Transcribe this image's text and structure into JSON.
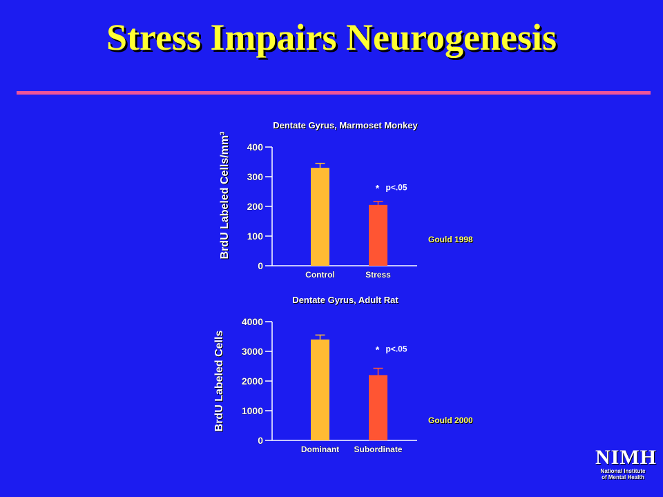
{
  "slide": {
    "title": "Stress Impairs Neurogenesis",
    "rule_color": "#ee5599",
    "background_color": "#1c1cf0"
  },
  "logo": {
    "mark": "NIMH",
    "line1": "National Institute",
    "line2": "of Mental Health"
  },
  "chart_data": [
    {
      "type": "bar",
      "title": "Dentate Gyrus, Marmoset Monkey",
      "ylabel": "BrdU Labeled Cells/mm³",
      "xlabel": "",
      "categories": [
        "Control",
        "Stress"
      ],
      "values": [
        330,
        205
      ],
      "error": [
        15,
        12
      ],
      "colors": [
        "#ffbb33",
        "#ff5533"
      ],
      "ylim": [
        0,
        400
      ],
      "yticks": [
        0,
        100,
        200,
        300,
        400
      ],
      "ytick_labels": [
        "0",
        "100",
        "200",
        "300",
        "400"
      ],
      "annotation": {
        "star": "*",
        "text": "p<.05",
        "category": "Stress"
      },
      "source": "Gould 1998"
    },
    {
      "type": "bar",
      "title": "Dentate Gyrus, Adult Rat",
      "ylabel": "BrdU Labeled Cells",
      "xlabel": "",
      "categories": [
        "Dominant",
        "Subordinate"
      ],
      "values": [
        3400,
        2200
      ],
      "error": [
        150,
        230
      ],
      "colors": [
        "#ffbb33",
        "#ff5533"
      ],
      "ylim": [
        0,
        4000
      ],
      "yticks": [
        0,
        1000,
        2000,
        3000,
        4000
      ],
      "ytick_labels": [
        "0",
        "1000",
        "2000",
        "3000",
        "4000"
      ],
      "annotation": {
        "star": "*",
        "text": "p<.05",
        "category": "Subordinate"
      },
      "source": "Gould 2000"
    }
  ]
}
